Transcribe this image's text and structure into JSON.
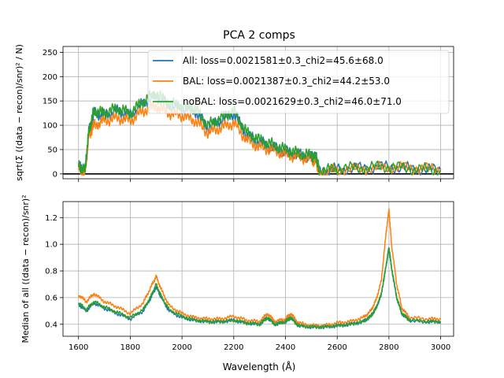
{
  "figure": {
    "title": "PCA 2 comps",
    "xlabel": "Wavelength (Å)"
  },
  "colors": {
    "all": "#1f77b4",
    "bal": "#ff7f0e",
    "nobal": "#2ca02c",
    "grid": "#b0b0b0",
    "zero_line": "#000000"
  },
  "chart_data": [
    {
      "type": "line",
      "panel": "top",
      "title": "PCA 2 comps",
      "ylabel": "sqrt(Σ ((data − recon)/snr)² / N)",
      "xlim": [
        1540,
        3050
      ],
      "ylim": [
        -10,
        262
      ],
      "xticks": [
        1600,
        1800,
        2000,
        2200,
        2400,
        2600,
        2800,
        3000
      ],
      "yticks": [
        0,
        50,
        100,
        150,
        200,
        250
      ],
      "grid": true,
      "legend_position": "upper-right",
      "hline": 0,
      "series": [
        {
          "name": "All: loss=0.0021581±0.3_chi2=45.6±68.0",
          "key": "all",
          "x": [
            1600,
            1625,
            1640,
            1660,
            1700,
            1750,
            1800,
            1850,
            1900,
            1950,
            2000,
            2050,
            2100,
            2150,
            2200,
            2250,
            2300,
            2350,
            2400,
            2450,
            2500,
            2520,
            2530,
            2600,
            2700,
            2800,
            2900,
            3000
          ],
          "y": [
            15,
            5,
            85,
            125,
            120,
            130,
            120,
            145,
            160,
            140,
            135,
            130,
            95,
            110,
            125,
            80,
            65,
            55,
            45,
            40,
            35,
            30,
            5,
            10,
            12,
            15,
            10,
            8
          ]
        },
        {
          "name": "BAL: loss=0.0021387±0.3_chi2=44.2±53.0",
          "key": "bal",
          "x": [
            1600,
            1625,
            1640,
            1660,
            1700,
            1750,
            1800,
            1850,
            1900,
            1950,
            2000,
            2050,
            2100,
            2150,
            2200,
            2250,
            2300,
            2350,
            2400,
            2450,
            2500,
            2520,
            2530,
            2600,
            2700,
            2800,
            2900,
            3000
          ],
          "y": [
            10,
            0,
            80,
            100,
            110,
            115,
            110,
            130,
            140,
            125,
            120,
            110,
            85,
            95,
            105,
            70,
            55,
            50,
            40,
            35,
            30,
            25,
            3,
            8,
            10,
            14,
            12,
            10
          ]
        },
        {
          "name": "noBAL: loss=0.0021629±0.3_chi2=46.0±71.0",
          "key": "nobal",
          "x": [
            1600,
            1625,
            1640,
            1660,
            1700,
            1750,
            1800,
            1850,
            1900,
            1950,
            2000,
            2050,
            2100,
            2150,
            2200,
            2250,
            2300,
            2350,
            2400,
            2450,
            2500,
            2520,
            2530,
            2600,
            2700,
            2800,
            2900,
            3000
          ],
          "y": [
            18,
            6,
            90,
            130,
            125,
            135,
            125,
            150,
            165,
            145,
            140,
            135,
            100,
            115,
            130,
            85,
            70,
            60,
            50,
            42,
            38,
            32,
            6,
            11,
            13,
            15,
            10,
            8
          ]
        }
      ]
    },
    {
      "type": "line",
      "panel": "bottom",
      "xlabel": "Wavelength (Å)",
      "ylabel": "Median of all ((data − recon)/snr)²",
      "xlim": [
        1540,
        3050
      ],
      "ylim": [
        0.31,
        1.32
      ],
      "xticks": [
        1600,
        1800,
        2000,
        2200,
        2400,
        2600,
        2800,
        3000
      ],
      "yticks": [
        0.4,
        0.6,
        0.8,
        1.0,
        1.2
      ],
      "grid": true,
      "series": [
        {
          "key": "all",
          "x": [
            1600,
            1630,
            1660,
            1700,
            1750,
            1800,
            1850,
            1880,
            1900,
            1920,
            1950,
            2000,
            2050,
            2100,
            2150,
            2200,
            2250,
            2300,
            2330,
            2360,
            2400,
            2420,
            2450,
            2500,
            2550,
            2600,
            2650,
            2700,
            2730,
            2750,
            2770,
            2790,
            2800,
            2810,
            2830,
            2850,
            2880,
            2950,
            3000
          ],
          "y": [
            0.55,
            0.5,
            0.56,
            0.52,
            0.48,
            0.44,
            0.5,
            0.6,
            0.68,
            0.6,
            0.5,
            0.45,
            0.43,
            0.42,
            0.42,
            0.43,
            0.41,
            0.4,
            0.45,
            0.4,
            0.42,
            0.45,
            0.39,
            0.38,
            0.38,
            0.39,
            0.4,
            0.42,
            0.46,
            0.52,
            0.62,
            0.85,
            0.97,
            0.82,
            0.6,
            0.48,
            0.43,
            0.42,
            0.42
          ]
        },
        {
          "key": "bal",
          "x": [
            1600,
            1630,
            1660,
            1700,
            1750,
            1800,
            1850,
            1880,
            1900,
            1920,
            1950,
            2000,
            2050,
            2100,
            2150,
            2200,
            2250,
            2300,
            2330,
            2360,
            2400,
            2420,
            2450,
            2500,
            2550,
            2600,
            2650,
            2700,
            2730,
            2750,
            2770,
            2790,
            2800,
            2810,
            2830,
            2850,
            2880,
            2950,
            3000
          ],
          "y": [
            0.62,
            0.57,
            0.63,
            0.57,
            0.53,
            0.48,
            0.56,
            0.68,
            0.76,
            0.66,
            0.54,
            0.48,
            0.45,
            0.44,
            0.44,
            0.46,
            0.43,
            0.42,
            0.48,
            0.42,
            0.44,
            0.48,
            0.41,
            0.39,
            0.39,
            0.41,
            0.42,
            0.45,
            0.5,
            0.58,
            0.72,
            1.1,
            1.26,
            1.0,
            0.7,
            0.52,
            0.45,
            0.44,
            0.44
          ]
        },
        {
          "key": "nobal",
          "x": [
            1600,
            1630,
            1660,
            1700,
            1750,
            1800,
            1850,
            1880,
            1900,
            1920,
            1950,
            2000,
            2050,
            2100,
            2150,
            2200,
            2250,
            2300,
            2330,
            2360,
            2400,
            2420,
            2450,
            2500,
            2550,
            2600,
            2650,
            2700,
            2730,
            2750,
            2770,
            2790,
            2800,
            2810,
            2830,
            2850,
            2880,
            2950,
            3000
          ],
          "y": [
            0.56,
            0.51,
            0.57,
            0.53,
            0.49,
            0.45,
            0.51,
            0.61,
            0.7,
            0.61,
            0.51,
            0.46,
            0.43,
            0.42,
            0.42,
            0.43,
            0.41,
            0.4,
            0.45,
            0.4,
            0.42,
            0.45,
            0.39,
            0.38,
            0.38,
            0.39,
            0.4,
            0.42,
            0.46,
            0.52,
            0.62,
            0.85,
            0.98,
            0.83,
            0.6,
            0.48,
            0.43,
            0.42,
            0.42
          ]
        }
      ]
    }
  ]
}
